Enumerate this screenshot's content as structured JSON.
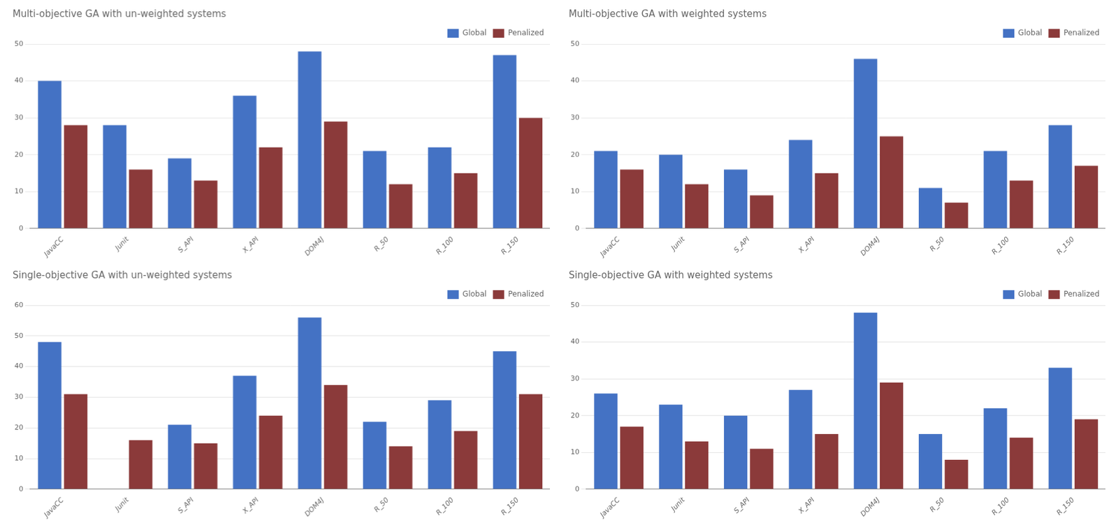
{
  "chart_data": [
    {
      "type": "bar",
      "title": "Multi-objective GA with un-weighted systems",
      "categories": [
        "JavaCC",
        "Junit",
        "S_API",
        "X_API",
        "DOM4J",
        "R_50",
        "R_100",
        "R_150"
      ],
      "series": [
        {
          "name": "Global",
          "color": "#4472C4",
          "values": [
            40,
            28,
            19,
            36,
            48,
            21,
            22,
            47
          ]
        },
        {
          "name": "Penalized",
          "color": "#8B3A3A",
          "values": [
            28,
            16,
            13,
            22,
            29,
            12,
            15,
            30
          ]
        }
      ],
      "ylim": [
        0,
        50
      ],
      "yticks": [
        0,
        10,
        20,
        30,
        40,
        50
      ],
      "grid": true,
      "legend": "upper right"
    },
    {
      "type": "bar",
      "title": "Multi-objective GA with weighted systems",
      "categories": [
        "JavaCC",
        "Junit",
        "S_API",
        "X_API",
        "DOM4J",
        "R_50",
        "R_100",
        "R_150"
      ],
      "series": [
        {
          "name": "Global",
          "color": "#4472C4",
          "values": [
            21,
            20,
            16,
            24,
            46,
            11,
            21,
            28
          ]
        },
        {
          "name": "Penalized",
          "color": "#8B3A3A",
          "values": [
            16,
            12,
            9,
            15,
            25,
            7,
            13,
            17
          ]
        }
      ],
      "ylim": [
        0,
        50
      ],
      "yticks": [
        0,
        10,
        20,
        30,
        40,
        50
      ],
      "grid": true,
      "legend": "upper right"
    },
    {
      "type": "bar",
      "title": "Single-objective GA with un-weighted systems",
      "categories": [
        "JavaCC",
        "Junit",
        "S_API",
        "X_API",
        "DOM4J",
        "R_50",
        "R_100",
        "R_150"
      ],
      "series": [
        {
          "name": "Global",
          "color": "#4472C4",
          "values": [
            48,
            null,
            21,
            37,
            56,
            22,
            29,
            45
          ]
        },
        {
          "name": "Penalized",
          "color": "#8B3A3A",
          "values": [
            31,
            16,
            15,
            24,
            34,
            14,
            19,
            31
          ]
        }
      ],
      "ylim": [
        0,
        60
      ],
      "yticks": [
        0,
        10,
        20,
        30,
        40,
        50,
        60
      ],
      "grid": true,
      "legend": "upper right"
    },
    {
      "type": "bar",
      "title": "Single-objective GA with weighted systems",
      "categories": [
        "JavaCC",
        "Junit",
        "S_API",
        "X_API",
        "DOM4J",
        "R_50",
        "R_100",
        "R_150"
      ],
      "series": [
        {
          "name": "Global",
          "color": "#4472C4",
          "values": [
            26,
            23,
            20,
            27,
            48,
            15,
            22,
            33
          ]
        },
        {
          "name": "Penalized",
          "color": "#8B3A3A",
          "values": [
            17,
            13,
            11,
            15,
            29,
            8,
            14,
            19
          ]
        }
      ],
      "ylim": [
        0,
        50
      ],
      "yticks": [
        0,
        10,
        20,
        30,
        40,
        50
      ],
      "grid": true,
      "legend": "upper right"
    }
  ]
}
